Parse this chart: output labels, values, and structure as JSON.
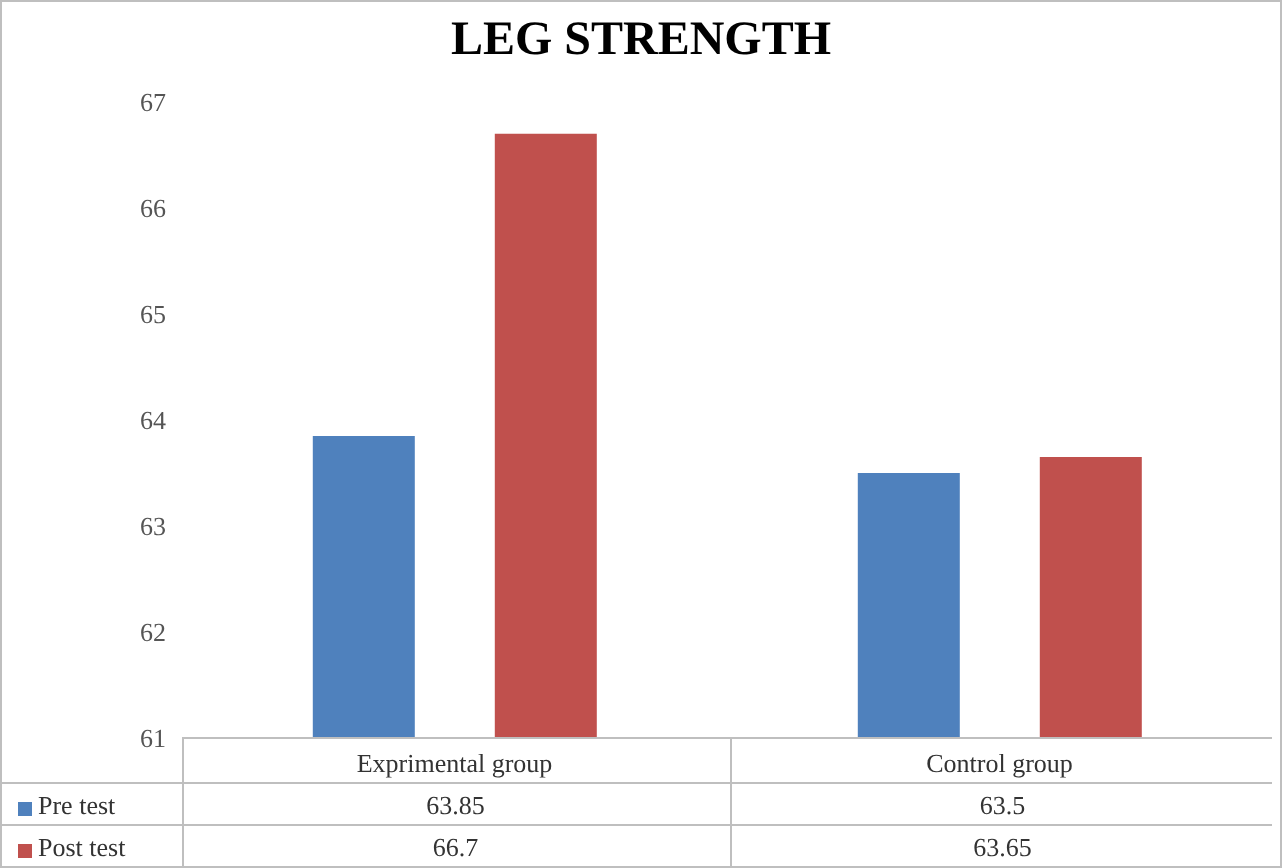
{
  "chart_data": {
    "type": "bar",
    "title": "LEG STRENGTH",
    "categories": [
      "Exprimental group",
      "Control group"
    ],
    "series": [
      {
        "name": "Pre test",
        "color": "#4f81bd",
        "values": [
          63.85,
          63.5
        ]
      },
      {
        "name": "Post test",
        "color": "#c0504d",
        "values": [
          66.7,
          63.65
        ]
      }
    ],
    "ylim": [
      61,
      67
    ],
    "yticks": [
      61,
      62,
      63,
      64,
      65,
      66,
      67
    ],
    "grid": false,
    "legend": "bottom",
    "data_labels": true
  }
}
